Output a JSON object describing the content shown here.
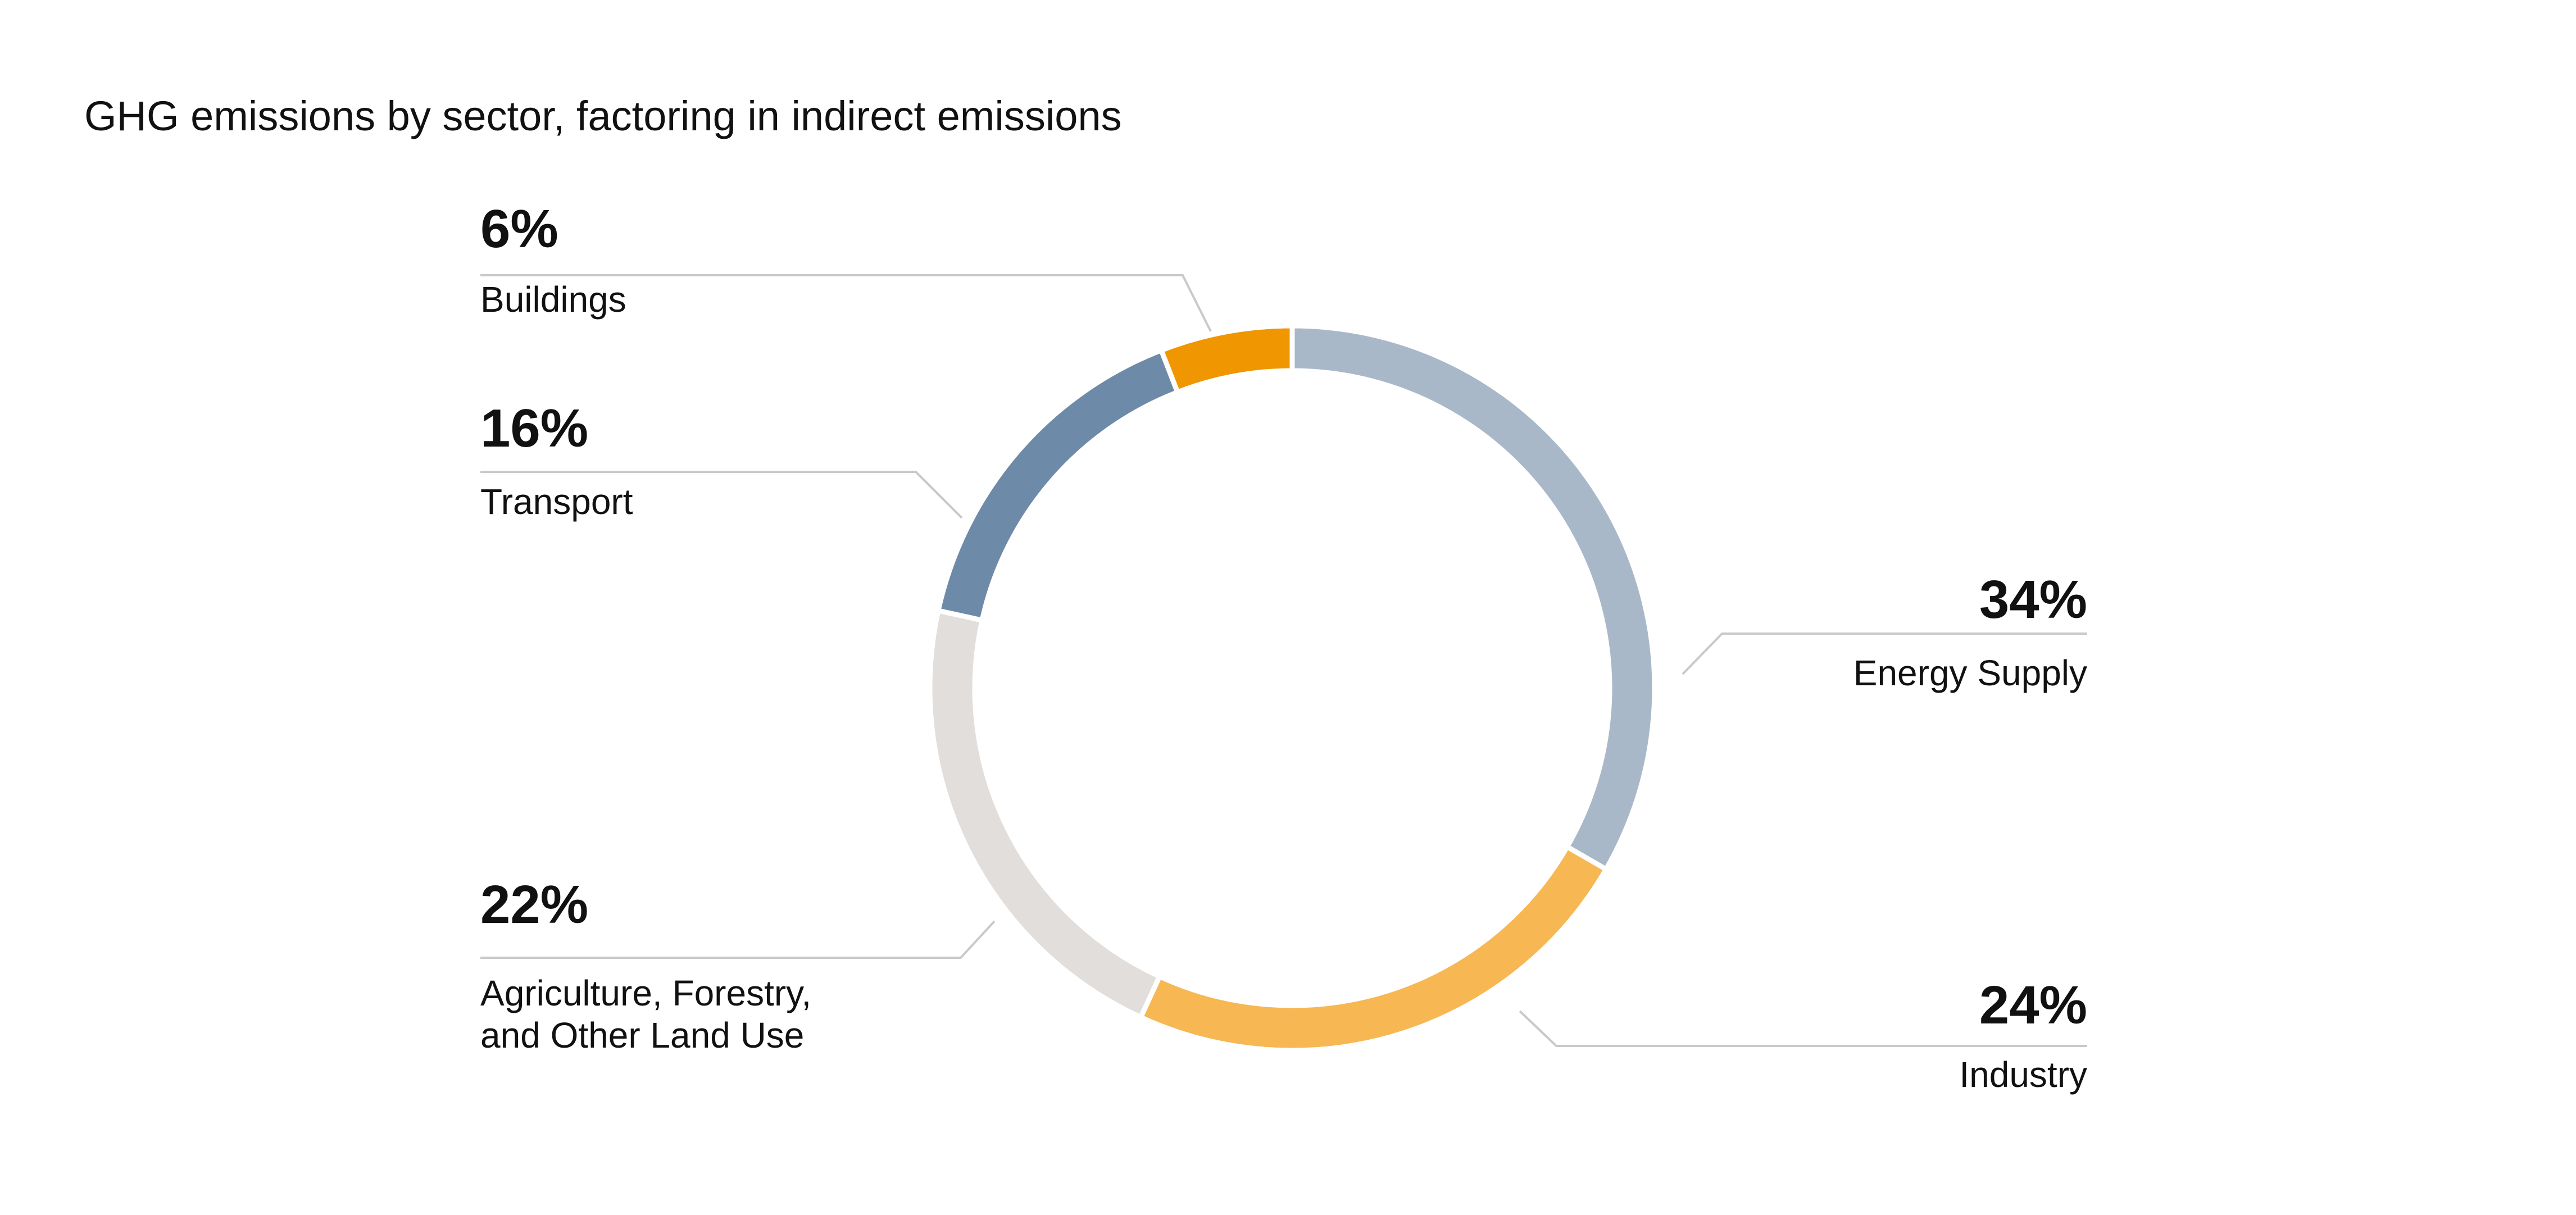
{
  "chart_data": {
    "type": "pie",
    "style": "donut",
    "title": "GHG emissions by sector, factoring in indirect emissions",
    "value_unit": "%",
    "start": "top",
    "direction": "clockwise",
    "slices": [
      {
        "label": "Energy Supply",
        "value": 34,
        "value_label": "34%",
        "color": "#a9b8c8"
      },
      {
        "label": "Industry",
        "value": 24,
        "value_label": "24%",
        "color": "#f7b753"
      },
      {
        "label": "Agriculture, Forestry, and Other Land Use",
        "label_lines": [
          "Agriculture, Forestry,",
          "and Other Land Use"
        ],
        "value": 22,
        "value_label": "22%",
        "color": "#e1dedb"
      },
      {
        "label": "Transport",
        "value": 16,
        "value_label": "16%",
        "color": "#6e8aa9"
      },
      {
        "label": "Buildings",
        "value": 6,
        "value_label": "6%",
        "color": "#ef9600"
      }
    ],
    "legend": "none",
    "grid": false
  }
}
